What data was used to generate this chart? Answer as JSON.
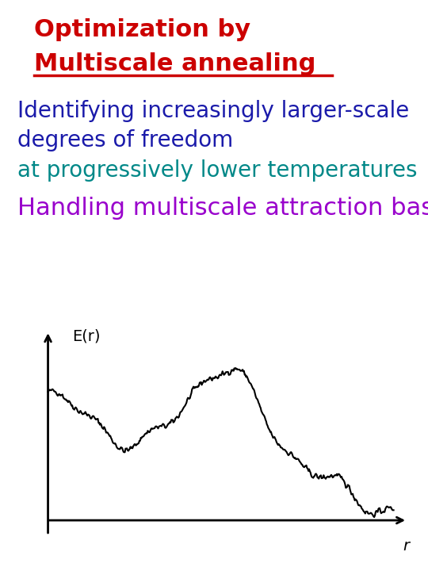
{
  "title_line1": "Optimization by",
  "title_line2": "Multiscale annealing",
  "title_color": "#cc0000",
  "subtitle_line1": "Identifying increasingly larger-scale",
  "subtitle_line2": "degrees of freedom",
  "subtitle_color": "#1a1aaa",
  "subtitle_line3": "at progressively lower temperatures",
  "subtitle_line3_color": "#008888",
  "handling_text": "Handling multiscale attraction basins",
  "handling_color": "#9900cc",
  "axis_label_x": "r",
  "axis_label_y": "E(r)",
  "background_color": "#ffffff",
  "title_fontsize": 22,
  "subtitle_fontsize": 20,
  "handling_fontsize": 22,
  "axis_label_fontsize": 14,
  "seed": 42
}
